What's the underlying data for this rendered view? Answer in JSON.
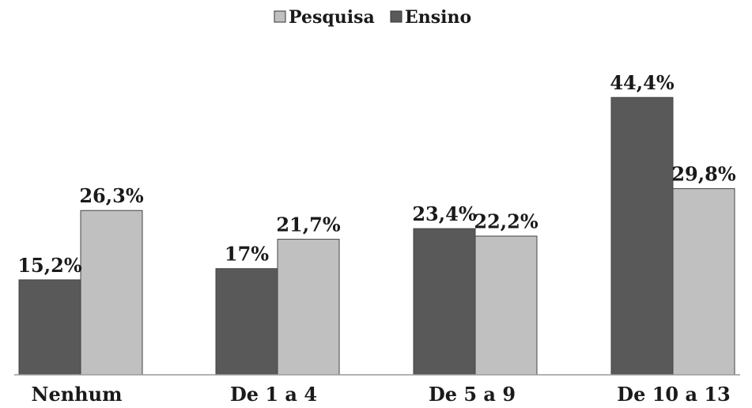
{
  "chart_data": {
    "type": "bar",
    "categories": [
      "Nenhum",
      "De 1 a 4",
      "De 5 a 9",
      "De 10 a 13"
    ],
    "series": [
      {
        "name": "Ensino",
        "values": [
          15.2,
          17,
          23.4,
          44.4
        ],
        "labels": [
          "15,2%",
          "17%",
          "23,4%",
          "44,4%"
        ],
        "color": "#595959"
      },
      {
        "name": "Pesquisa",
        "values": [
          26.3,
          21.7,
          22.2,
          29.8
        ],
        "labels": [
          "26,3%",
          "21,7%",
          "22,2%",
          "29,8%"
        ],
        "color": "#c0c0c0"
      }
    ],
    "legend": {
      "position": "top-center",
      "order": [
        "Pesquisa",
        "Ensino"
      ]
    },
    "ylim": [
      0,
      50
    ],
    "grid": false,
    "unit": "%"
  }
}
